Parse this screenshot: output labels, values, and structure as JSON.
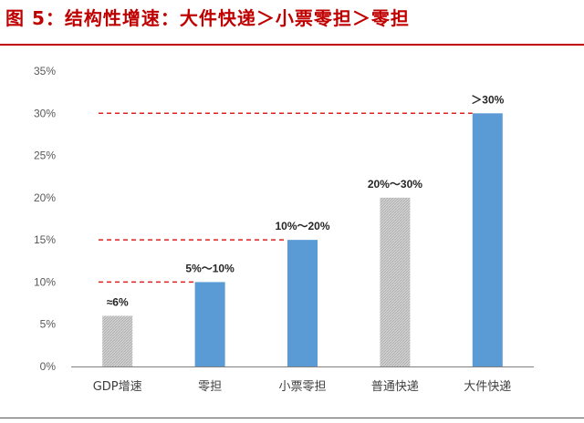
{
  "title": "图 5：结构性增速：大件快递＞小票零担＞零担",
  "colors": {
    "title": "#c00000",
    "title_rule": "#c00000",
    "highlight_bar": "#5b9bd5",
    "baseline_bar": "#c8c8c8",
    "reference_line": "#e02020",
    "axis": "#7f7f7f"
  },
  "chart_data": {
    "type": "bar",
    "title": "",
    "xlabel": "",
    "ylabel": "",
    "ylim": [
      0,
      0.35
    ],
    "y_ticks": [
      0,
      0.05,
      0.1,
      0.15,
      0.2,
      0.25,
      0.3,
      0.35
    ],
    "y_tick_labels": [
      "0%",
      "5%",
      "10%",
      "15%",
      "20%",
      "25%",
      "30%",
      "35%"
    ],
    "grid": false,
    "legend": "none",
    "categories": [
      "GDP增速",
      "零担",
      "小票零担",
      "普通快递",
      "大件快递"
    ],
    "values": [
      0.06,
      0.1,
      0.15,
      0.2,
      0.3
    ],
    "data_labels": [
      "≈6%",
      "5%～10%",
      "10%～20%",
      "20%～30%",
      "＞30%"
    ],
    "bar_styles": [
      "hatched-gray",
      "blue",
      "blue",
      "hatched-gray",
      "blue"
    ],
    "reference_lines": [
      0.1,
      0.15,
      0.3
    ]
  }
}
